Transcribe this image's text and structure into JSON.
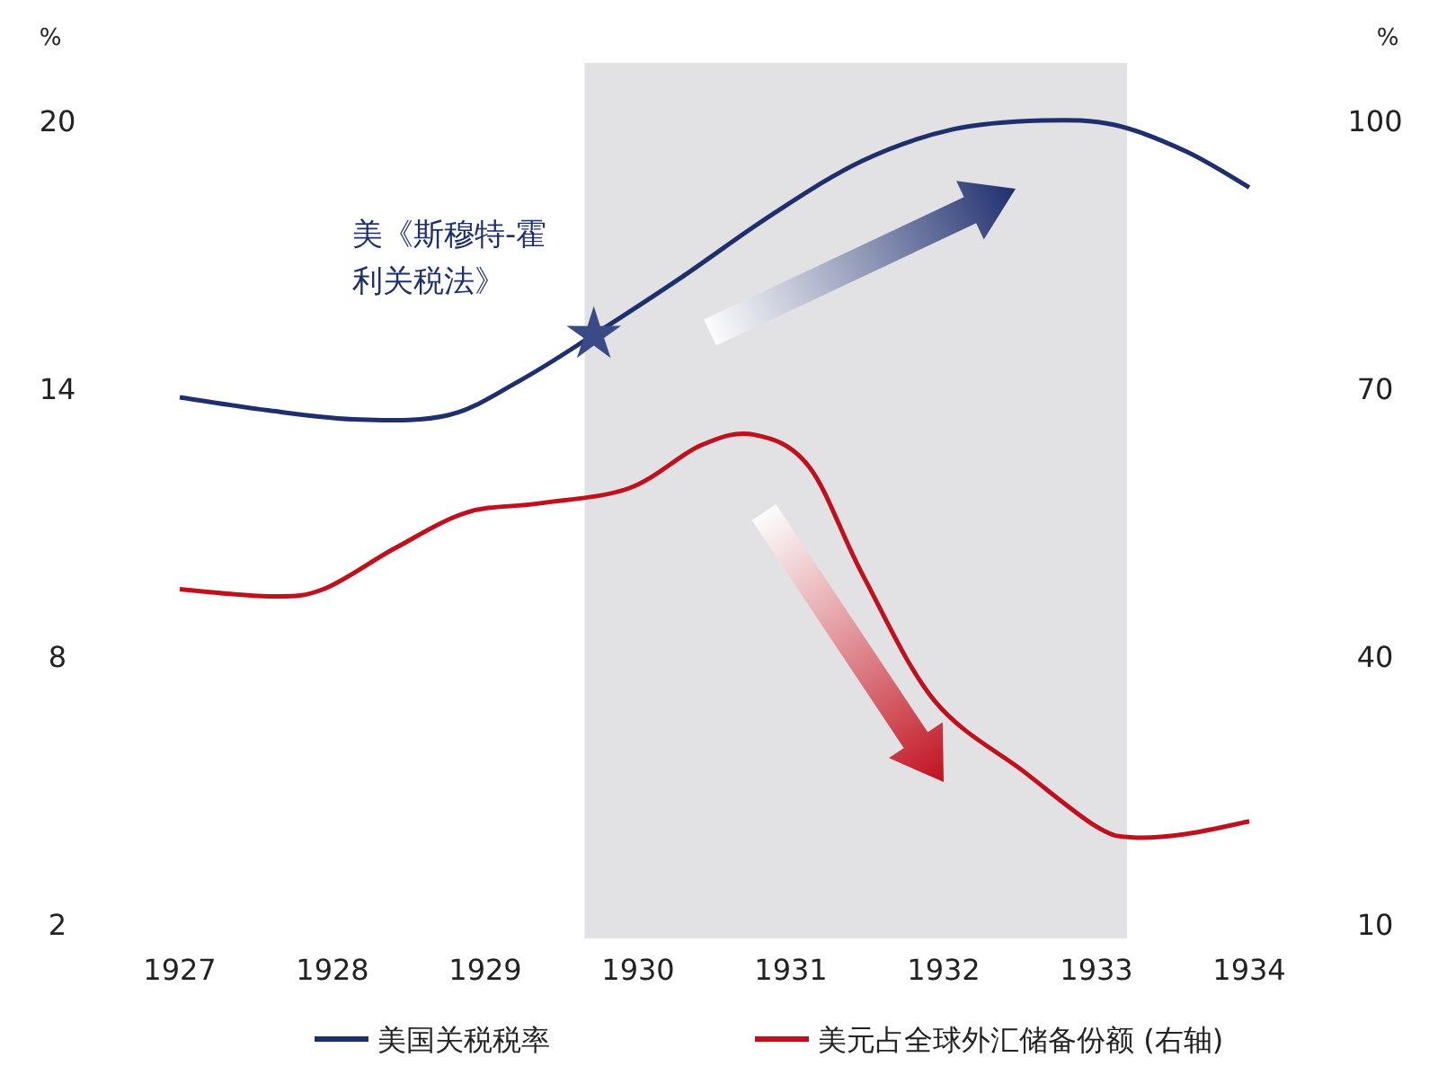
{
  "chart_data": {
    "type": "line",
    "ylabel": "%",
    "y2label": "%",
    "xlim": [
      1927,
      1934
    ],
    "xticks": [
      1927,
      1928,
      1929,
      1930,
      1931,
      1932,
      1933,
      1934
    ],
    "ylim": [
      2,
      20
    ],
    "yticks": [
      2,
      8,
      14,
      20
    ],
    "y2lim": [
      10,
      100
    ],
    "y2ticks": [
      10,
      40,
      70,
      100
    ],
    "grid": false,
    "legend": "bottom",
    "marker": "none",
    "line_style": "solid",
    "series": [
      {
        "name": "美国关税税率",
        "color": "#1f2f6e",
        "x": [
          1927,
          1927.59,
          1928.18,
          1928.76,
          1929.24,
          1929.71,
          1930.29,
          1930.88,
          1931.47,
          1932.06,
          1932.65,
          1933.12,
          1933.59,
          1934
        ],
        "values": [
          13.8,
          13.5,
          13.3,
          13.4,
          14.2,
          15.2,
          16.5,
          17.9,
          19.1,
          19.8,
          20.0,
          19.9,
          19.3,
          18.5
        ]
      },
      {
        "name": "美元占全球外汇储备份额 (右轴)",
        "color": "#c0101e",
        "axis": "y2",
        "x": [
          1927,
          1927.59,
          1927.94,
          1928.41,
          1928.88,
          1929.35,
          1929.94,
          1930.41,
          1930.76,
          1931.12,
          1931.47,
          1931.94,
          1932.53,
          1933.0,
          1933.24,
          1933.59,
          1934
        ],
        "values": [
          47.5,
          46.7,
          47.5,
          52.1,
          56.1,
          57.1,
          58.8,
          63.6,
          64.8,
          61.2,
          49.1,
          35.0,
          27.0,
          20.9,
          19.7,
          20.1,
          21.5
        ]
      }
    ],
    "bands": [
      {
        "axis": "x",
        "from": 1929.65,
        "to": 1933.2,
        "color": "#e2e2e4"
      }
    ],
    "annotations": [
      {
        "text": "美《斯穆特-霍利关税法》",
        "x": 1929.71,
        "y": 15.2
      }
    ]
  }
}
